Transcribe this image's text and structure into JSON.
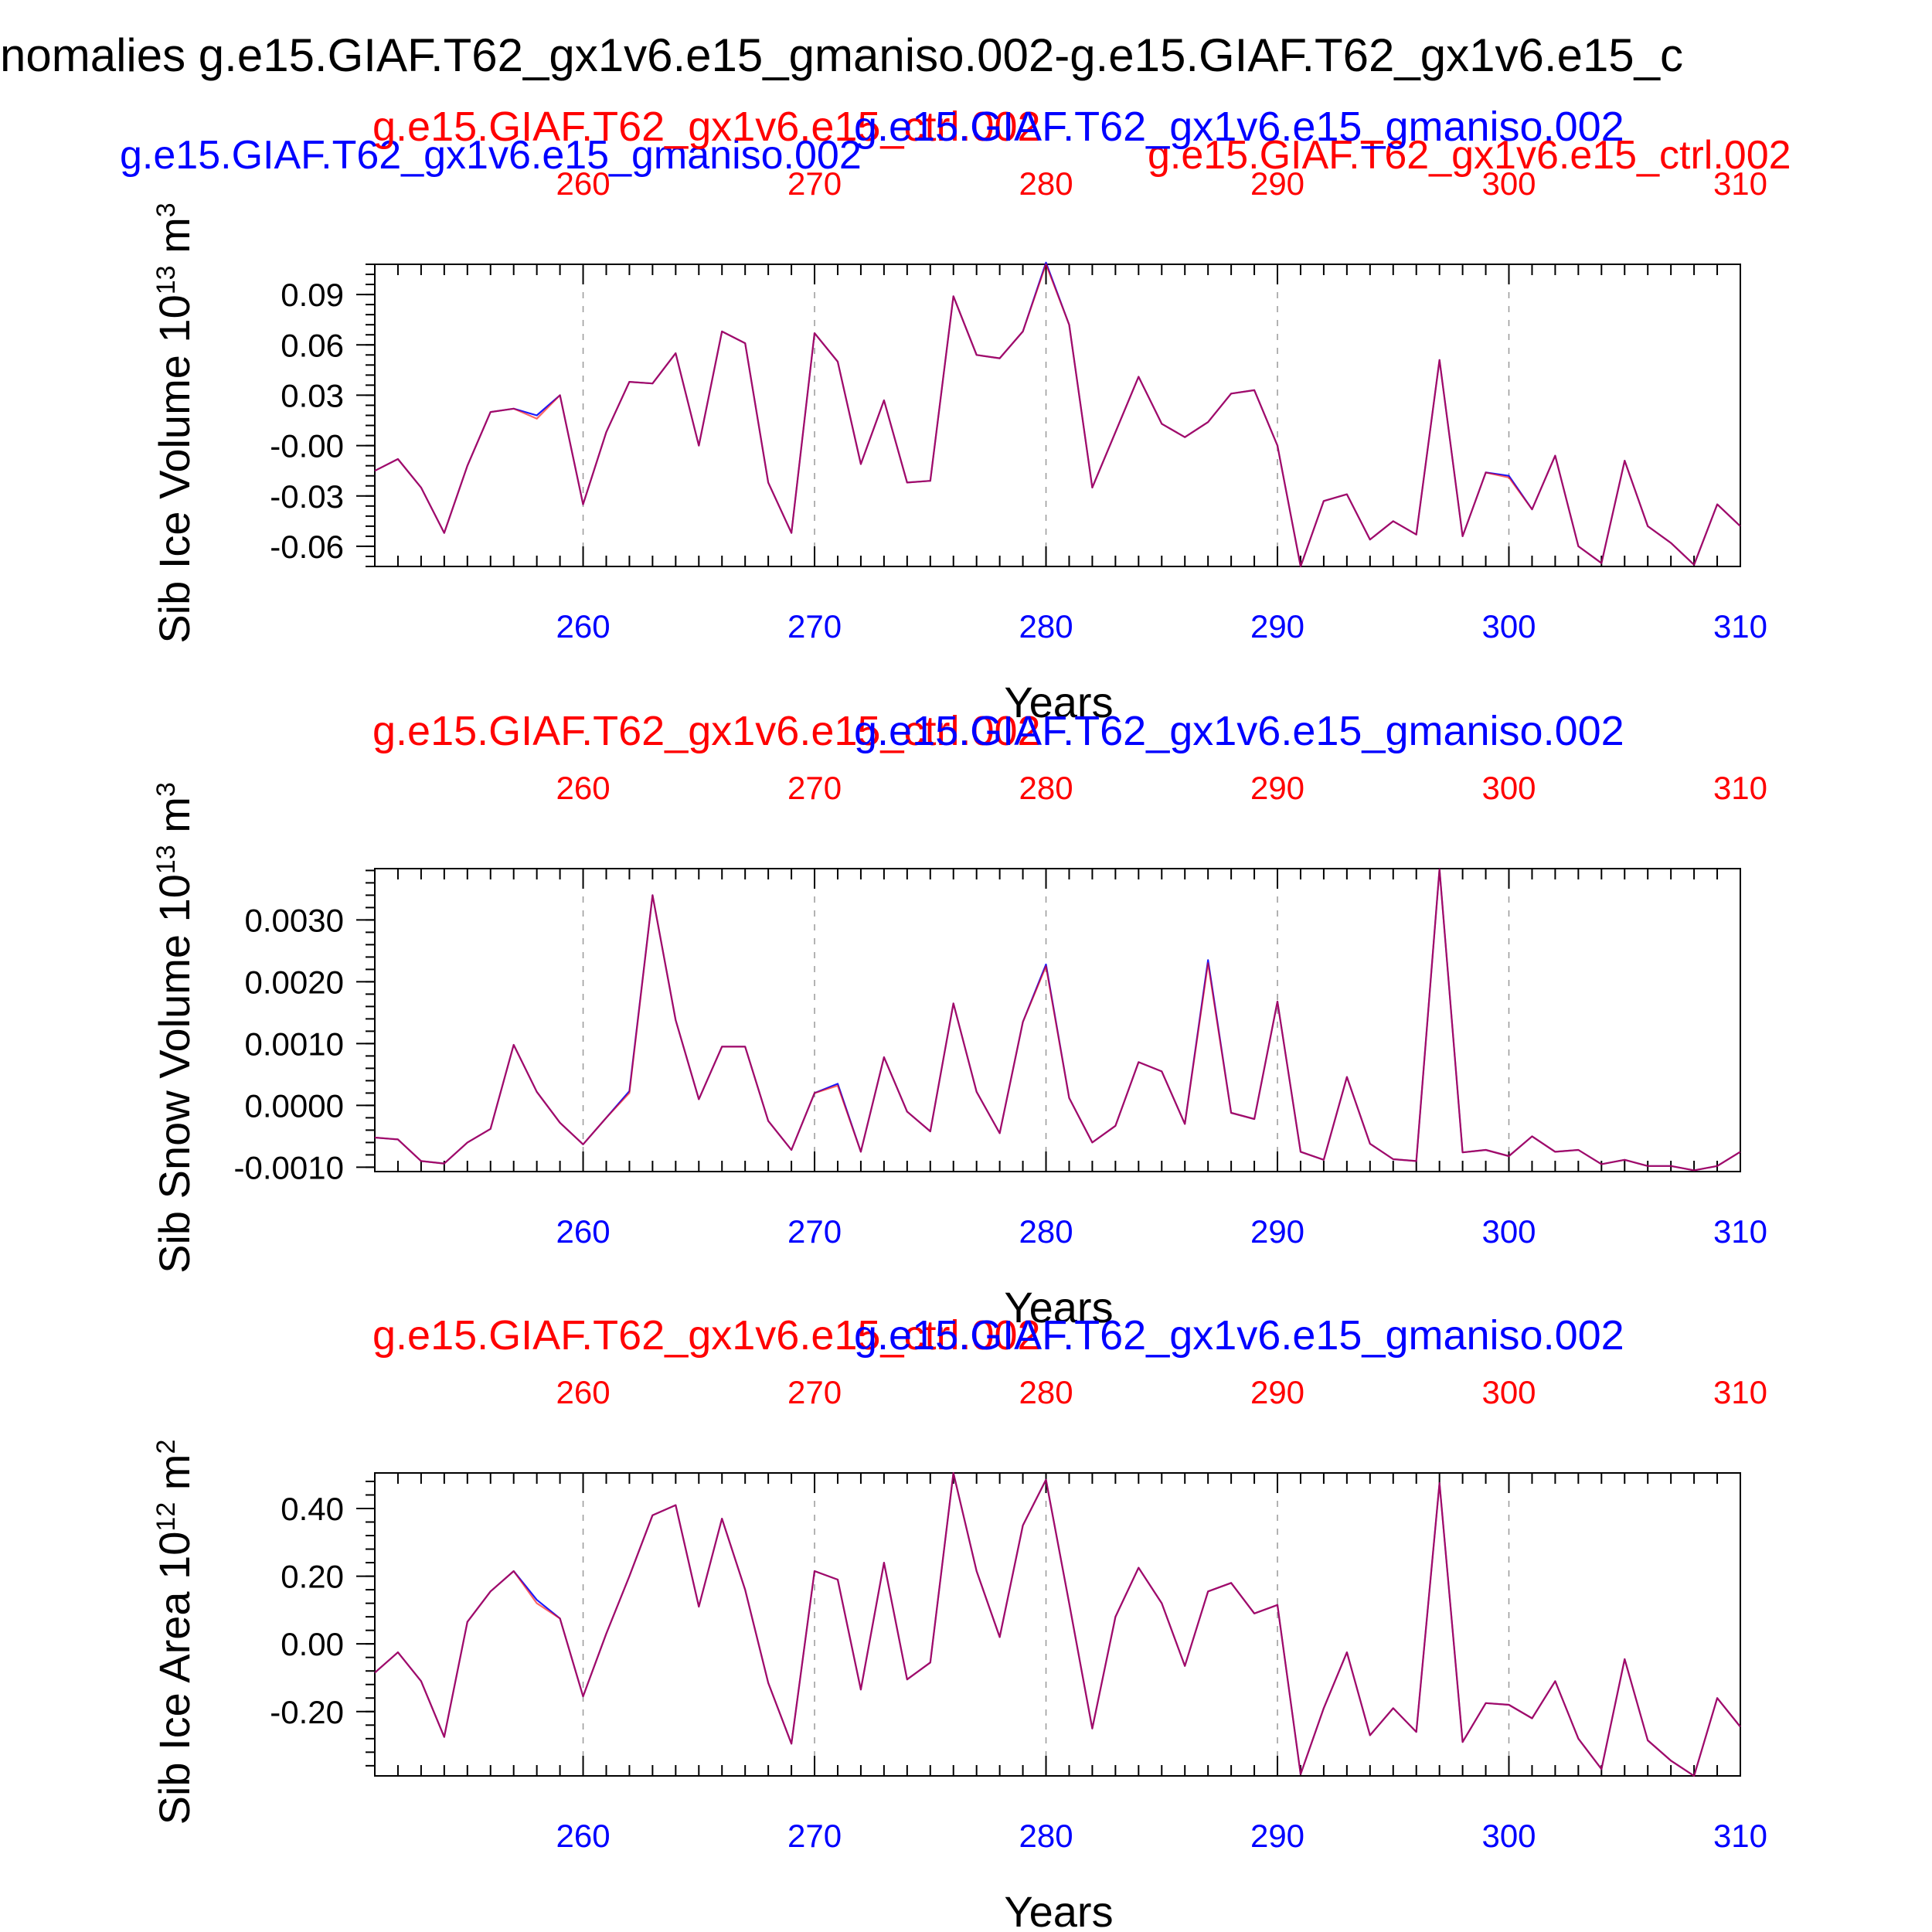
{
  "main_title": "nomalies g.e15.GIAF.T62_gx1v6.e15_gmaniso.002-g.e15.GIAF.T62_gx1v6.e15_c",
  "colors": {
    "case_a": "#0000ff",
    "case_b": "#ff0000",
    "overlap": "#b0006a",
    "axis": "#000000",
    "grid": "#999999"
  },
  "chart_data": [
    {
      "type": "line",
      "ylabel": "Sib Ice Volume 10",
      "ylabel_exp": "13",
      "ylabel_unit": " m",
      "ylabel_unit_exp": "3",
      "xlabel": "Years",
      "top_label_blue": "g.e15.GIAF.T62_gx1v6.e15_gmaniso.002",
      "top_label_red": "g.e15.GIAF.T62_gx1v6.e15_ctrl.002",
      "extra_label_blue": "g.e15.GIAF.T62_gx1v6.e15_gmaniso.002",
      "extra_label_red": "g.e15.GIAF.T62_gx1v6.e15_ctrl.002",
      "xlim": [
        251,
        310
      ],
      "ylim": [
        -0.072,
        0.108
      ],
      "yticks": [
        0.09,
        0.06,
        0.03,
        0.0,
        -0.03,
        -0.06
      ],
      "ytick_labels": [
        "0.09",
        "0.06",
        "0.03",
        "-0.00",
        "-0.03",
        "-0.06"
      ],
      "xticks": [
        260,
        270,
        280,
        290,
        300,
        310
      ],
      "xtick_labels": [
        "260",
        "270",
        "280",
        "290",
        "300",
        "310"
      ],
      "grid_x": true,
      "x": [
        251,
        252,
        253,
        254,
        255,
        256,
        257,
        258,
        259,
        260,
        261,
        262,
        263,
        264,
        265,
        266,
        267,
        268,
        269,
        270,
        271,
        272,
        273,
        274,
        275,
        276,
        277,
        278,
        279,
        280,
        281,
        282,
        283,
        284,
        285,
        286,
        287,
        288,
        289,
        290,
        291,
        292,
        293,
        294,
        295,
        296,
        297,
        298,
        299,
        300,
        301,
        302,
        303,
        304,
        305,
        306,
        307,
        308,
        309,
        310
      ],
      "series": [
        {
          "values": [
            -0.015,
            -0.008,
            -0.025,
            -0.052,
            -0.012,
            0.02,
            0.022,
            0.018,
            0.03,
            -0.035,
            0.008,
            0.038,
            0.037,
            0.055,
            0.0,
            0.068,
            0.061,
            -0.022,
            -0.052,
            0.067,
            0.05,
            -0.011,
            0.027,
            -0.022,
            -0.021,
            0.089,
            0.054,
            0.052,
            0.068,
            0.109,
            0.072,
            -0.025,
            0.008,
            0.041,
            0.013,
            0.005,
            0.014,
            0.031,
            0.033,
            0.0,
            -0.072,
            -0.033,
            -0.029,
            -0.056,
            -0.045,
            -0.053,
            0.051,
            -0.054,
            -0.016,
            -0.018,
            -0.038,
            -0.006,
            -0.06,
            -0.07,
            -0.009,
            -0.048,
            -0.058,
            -0.071,
            -0.035,
            -0.048
          ]
        },
        {
          "values": [
            -0.015,
            -0.008,
            -0.025,
            -0.052,
            -0.012,
            0.02,
            0.022,
            0.016,
            0.03,
            -0.035,
            0.008,
            0.038,
            0.037,
            0.055,
            0.0,
            0.068,
            0.061,
            -0.022,
            -0.052,
            0.067,
            0.05,
            -0.011,
            0.027,
            -0.022,
            -0.021,
            0.089,
            0.054,
            0.052,
            0.068,
            0.108,
            0.072,
            -0.025,
            0.008,
            0.041,
            0.013,
            0.005,
            0.014,
            0.031,
            0.033,
            0.0,
            -0.072,
            -0.033,
            -0.029,
            -0.056,
            -0.045,
            -0.053,
            0.051,
            -0.054,
            -0.016,
            -0.019,
            -0.038,
            -0.006,
            -0.06,
            -0.07,
            -0.009,
            -0.048,
            -0.058,
            -0.071,
            -0.035,
            -0.048
          ]
        }
      ]
    },
    {
      "type": "line",
      "ylabel": "Sib Snow Volume 10",
      "ylabel_exp": "13",
      "ylabel_unit": " m",
      "ylabel_unit_exp": "3",
      "xlabel": "Years",
      "top_label_blue": "g.e15.GIAF.T62_gx1v6.e15_gmaniso.002",
      "top_label_red": "g.e15.GIAF.T62_gx1v6.e15_ctrl.002",
      "xlim": [
        251,
        310
      ],
      "ylim": [
        -0.00107,
        0.00383
      ],
      "yticks": [
        0.003,
        0.002,
        0.001,
        0.0,
        -0.001
      ],
      "ytick_labels": [
        "0.0030",
        "0.0020",
        "0.0010",
        "0.0000",
        "-0.0010"
      ],
      "xticks": [
        260,
        270,
        280,
        290,
        300,
        310
      ],
      "xtick_labels": [
        "260",
        "270",
        "280",
        "290",
        "300",
        "310"
      ],
      "grid_x": true,
      "x": [
        251,
        252,
        253,
        254,
        255,
        256,
        257,
        258,
        259,
        260,
        261,
        262,
        263,
        264,
        265,
        266,
        267,
        268,
        269,
        270,
        271,
        272,
        273,
        274,
        275,
        276,
        277,
        278,
        279,
        280,
        281,
        282,
        283,
        284,
        285,
        286,
        287,
        288,
        289,
        290,
        291,
        292,
        293,
        294,
        295,
        296,
        297,
        298,
        299,
        300,
        301,
        302,
        303,
        304,
        305,
        306,
        307,
        308,
        309,
        310
      ],
      "series": [
        {
          "values": [
            -0.00052,
            -0.00055,
            -0.0009,
            -0.00094,
            -0.0006,
            -0.00038,
            0.00098,
            0.00022,
            -0.00028,
            -0.00063,
            -0.0002,
            0.00023,
            0.0034,
            0.00138,
            0.0001,
            0.00095,
            0.00095,
            -0.00025,
            -0.00072,
            0.0002,
            0.00035,
            -0.00075,
            0.00078,
            -0.0001,
            -0.00042,
            0.00165,
            0.00022,
            -0.00045,
            0.00135,
            0.00228,
            0.00012,
            -0.0006,
            -0.00033,
            0.0007,
            0.00055,
            -0.0003,
            0.00235,
            -0.00012,
            -0.00022,
            0.00168,
            -0.00075,
            -0.00088,
            0.00046,
            -0.00062,
            -0.00087,
            -0.0009,
            0.00382,
            -0.00076,
            -0.00072,
            -0.00082,
            -0.0005,
            -0.00075,
            -0.00072,
            -0.00095,
            -0.00088,
            -0.00098,
            -0.00098,
            -0.00105,
            -0.00098,
            -0.00075
          ]
        },
        {
          "values": [
            -0.00052,
            -0.00055,
            -0.0009,
            -0.00094,
            -0.0006,
            -0.00038,
            0.00098,
            0.00022,
            -0.00028,
            -0.00063,
            -0.0002,
            0.0002,
            0.0034,
            0.00138,
            0.0001,
            0.00095,
            0.00095,
            -0.00025,
            -0.00072,
            0.0002,
            0.00032,
            -0.00075,
            0.00078,
            -0.0001,
            -0.00042,
            0.00165,
            0.00022,
            -0.00045,
            0.00135,
            0.00225,
            0.00012,
            -0.0006,
            -0.00033,
            0.0007,
            0.00055,
            -0.0003,
            0.0023,
            -0.00012,
            -0.00022,
            0.00168,
            -0.00075,
            -0.00088,
            0.00046,
            -0.00062,
            -0.00087,
            -0.0009,
            0.00382,
            -0.00076,
            -0.00072,
            -0.00082,
            -0.0005,
            -0.00075,
            -0.00072,
            -0.00095,
            -0.00088,
            -0.00098,
            -0.00098,
            -0.00105,
            -0.00098,
            -0.00075
          ]
        }
      ]
    },
    {
      "type": "line",
      "ylabel": "Sib Ice Area 10",
      "ylabel_exp": "12",
      "ylabel_unit": " m",
      "ylabel_unit_exp": "2",
      "xlabel": "Years",
      "top_label_blue": "g.e15.GIAF.T62_gx1v6.e15_gmaniso.002",
      "top_label_red": "g.e15.GIAF.T62_gx1v6.e15_ctrl.002",
      "xlim": [
        251,
        310
      ],
      "ylim": [
        -0.39,
        0.505
      ],
      "yticks": [
        0.4,
        0.2,
        0.0,
        -0.2
      ],
      "ytick_labels": [
        "0.40",
        "0.20",
        "0.00",
        "-0.20"
      ],
      "xticks": [
        260,
        270,
        280,
        290,
        300,
        310
      ],
      "xtick_labels": [
        "260",
        "270",
        "280",
        "290",
        "300",
        "310"
      ],
      "grid_x": true,
      "x": [
        251,
        252,
        253,
        254,
        255,
        256,
        257,
        258,
        259,
        260,
        261,
        262,
        263,
        264,
        265,
        266,
        267,
        268,
        269,
        270,
        271,
        272,
        273,
        274,
        275,
        276,
        277,
        278,
        279,
        280,
        281,
        282,
        283,
        284,
        285,
        286,
        287,
        288,
        289,
        290,
        291,
        292,
        293,
        294,
        295,
        296,
        297,
        298,
        299,
        300,
        301,
        302,
        303,
        304,
        305,
        306,
        307,
        308,
        309,
        310
      ],
      "series": [
        {
          "values": [
            -0.085,
            -0.025,
            -0.11,
            -0.275,
            0.065,
            0.155,
            0.215,
            0.13,
            0.075,
            -0.155,
            0.03,
            0.2,
            0.38,
            0.41,
            0.11,
            0.37,
            0.16,
            -0.115,
            -0.295,
            0.215,
            0.19,
            -0.135,
            0.24,
            -0.105,
            -0.055,
            0.505,
            0.215,
            0.02,
            0.35,
            0.485,
            0.12,
            -0.25,
            0.08,
            0.225,
            0.12,
            -0.065,
            0.155,
            0.18,
            0.09,
            0.115,
            -0.385,
            -0.19,
            -0.025,
            -0.27,
            -0.19,
            -0.26,
            0.475,
            -0.29,
            -0.175,
            -0.18,
            -0.22,
            -0.11,
            -0.28,
            -0.37,
            -0.045,
            -0.285,
            -0.345,
            -0.39,
            -0.16,
            -0.245
          ]
        },
        {
          "values": [
            -0.085,
            -0.025,
            -0.11,
            -0.275,
            0.065,
            0.155,
            0.215,
            0.12,
            0.075,
            -0.155,
            0.03,
            0.2,
            0.38,
            0.41,
            0.11,
            0.37,
            0.16,
            -0.115,
            -0.295,
            0.215,
            0.19,
            -0.135,
            0.24,
            -0.105,
            -0.055,
            0.505,
            0.215,
            0.02,
            0.35,
            0.485,
            0.12,
            -0.25,
            0.08,
            0.225,
            0.12,
            -0.065,
            0.155,
            0.18,
            0.09,
            0.115,
            -0.385,
            -0.19,
            -0.025,
            -0.27,
            -0.19,
            -0.26,
            0.475,
            -0.29,
            -0.175,
            -0.18,
            -0.22,
            -0.11,
            -0.28,
            -0.37,
            -0.045,
            -0.285,
            -0.345,
            -0.39,
            -0.16,
            -0.245
          ]
        }
      ]
    }
  ]
}
